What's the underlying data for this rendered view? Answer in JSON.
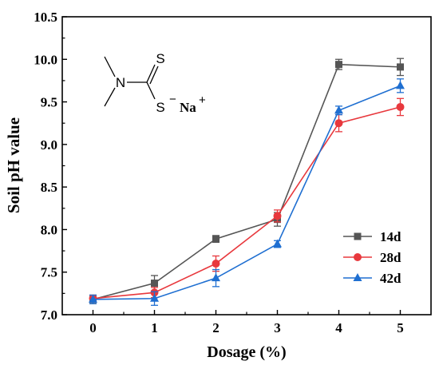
{
  "chart_data": {
    "type": "line",
    "title": "",
    "xlabel": "Dosage (%)",
    "ylabel": "Soil pH value",
    "x": [
      0,
      1,
      2,
      3,
      4,
      5
    ],
    "xlim": [
      -0.5,
      5.5
    ],
    "ylim": [
      7.0,
      10.5
    ],
    "x_ticks": [
      "0",
      "1",
      "2",
      "3",
      "4",
      "5"
    ],
    "y_ticks": [
      "7.0",
      "7.5",
      "8.0",
      "8.5",
      "9.0",
      "9.5",
      "10.0",
      "10.5"
    ],
    "y_tick_values": [
      7.0,
      7.5,
      8.0,
      8.5,
      9.0,
      9.5,
      10.0,
      10.5
    ],
    "legend_position": "bottom-right",
    "series": [
      {
        "name": "14d",
        "color": "#555555",
        "marker": "square",
        "values": [
          7.18,
          7.37,
          7.89,
          8.12,
          9.94,
          9.91
        ],
        "errors": [
          0.05,
          0.09,
          0.04,
          0.08,
          0.06,
          0.1
        ]
      },
      {
        "name": "28d",
        "color": "#e8383d",
        "marker": "circle",
        "values": [
          7.19,
          7.26,
          7.6,
          8.16,
          9.25,
          9.44
        ],
        "errors": [
          0.04,
          0.06,
          0.09,
          0.07,
          0.1,
          0.1
        ]
      },
      {
        "name": "42d",
        "color": "#1f6fd1",
        "marker": "triangle",
        "values": [
          7.18,
          7.19,
          7.43,
          7.83,
          9.4,
          9.69
        ],
        "errors": [
          0.05,
          0.08,
          0.1,
          0.04,
          0.05,
          0.08
        ]
      }
    ]
  },
  "molecule": {
    "n_label": "N",
    "s_top_label": "S",
    "s_bottom_label": "S",
    "s_charge": "−",
    "na_label": "Na",
    "na_charge": "+"
  }
}
